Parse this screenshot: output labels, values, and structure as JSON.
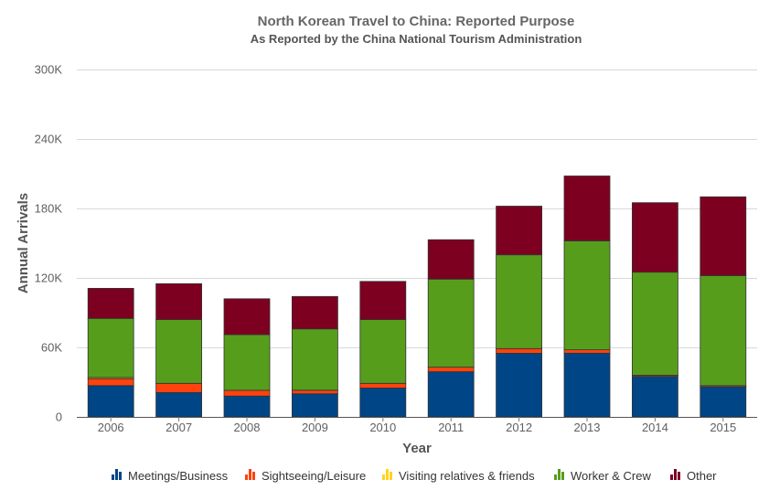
{
  "chart_data": {
    "type": "bar",
    "stacked": true,
    "title": "North Korean Travel to China: Reported Purpose",
    "subtitle": "As Reported by the China National Tourism Administration",
    "xlabel": "Year",
    "ylabel": "Annual Arrivals",
    "ylim": [
      0,
      300000
    ],
    "yticks": [
      0,
      60000,
      120000,
      180000,
      240000,
      300000
    ],
    "ytick_labels": [
      "0",
      "60K",
      "120K",
      "180K",
      "240K",
      "300K"
    ],
    "grid": true,
    "legend_position": "bottom",
    "categories": [
      "2006",
      "2007",
      "2008",
      "2009",
      "2010",
      "2011",
      "2012",
      "2013",
      "2014",
      "2015"
    ],
    "series": [
      {
        "name": "Meetings/Business",
        "color": "#004586",
        "values": [
          27000,
          21000,
          18000,
          20000,
          25000,
          39000,
          55000,
          55000,
          35000,
          26000
        ]
      },
      {
        "name": "Sightseeing/Leisure",
        "color": "#ff420e",
        "values": [
          6000,
          8000,
          5000,
          3000,
          4000,
          4000,
          4000,
          3000,
          1000,
          1000
        ]
      },
      {
        "name": "Visiting relatives & friends",
        "color": "#ffd320",
        "values": [
          1000,
          0,
          0,
          0,
          0,
          0,
          0,
          0,
          0,
          0
        ]
      },
      {
        "name": "Worker & Crew",
        "color": "#579d1c",
        "values": [
          51000,
          55000,
          48000,
          53000,
          55000,
          76000,
          81000,
          94000,
          89000,
          95000
        ]
      },
      {
        "name": "Other",
        "color": "#7e0021",
        "values": [
          26000,
          31000,
          31000,
          28000,
          33000,
          34000,
          42000,
          56000,
          60000,
          68000
        ]
      }
    ]
  }
}
